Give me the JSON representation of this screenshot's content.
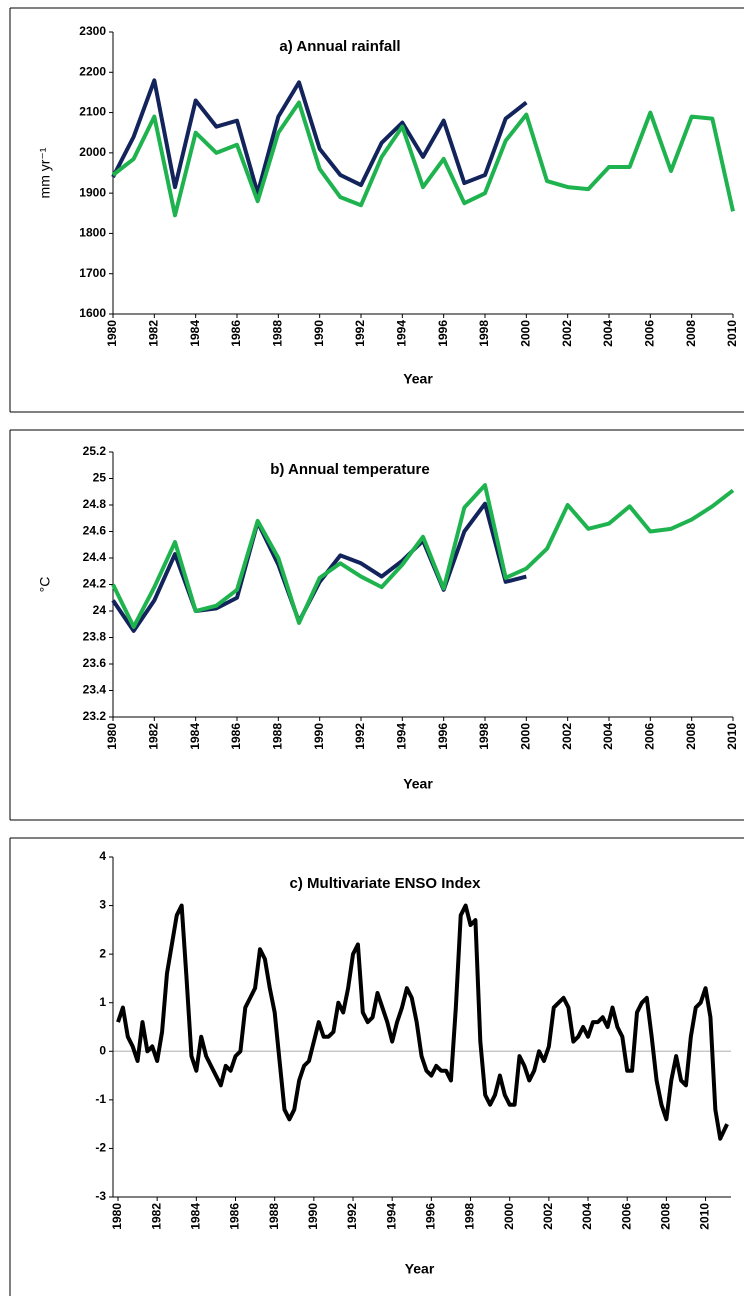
{
  "chart_data": [
    {
      "type": "line",
      "title": "a)  Annual rainfall",
      "xlabel": "Year",
      "ylabel": "mm yr⁻¹",
      "x": [
        1980,
        1981,
        1982,
        1983,
        1984,
        1985,
        1986,
        1987,
        1988,
        1989,
        1990,
        1991,
        1992,
        1993,
        1994,
        1995,
        1996,
        1997,
        1998,
        1999,
        2000,
        2001,
        2002,
        2003,
        2004,
        2005,
        2006,
        2007,
        2008,
        2009,
        2010
      ],
      "xlim": [
        1980,
        2010
      ],
      "xticks": [
        1980,
        1982,
        1984,
        1986,
        1988,
        1990,
        1992,
        1994,
        1996,
        1998,
        2000,
        2002,
        2004,
        2006,
        2008,
        2010
      ],
      "ylim": [
        1600,
        2300
      ],
      "yticks": [
        1600,
        1700,
        1800,
        1900,
        2000,
        2100,
        2200,
        2300
      ],
      "series": [
        {
          "color": "#13235b",
          "values": [
            1940,
            2040,
            2180,
            1915,
            2130,
            2065,
            2080,
            1900,
            2090,
            2175,
            2010,
            1945,
            1920,
            2025,
            2075,
            1990,
            2080,
            1925,
            1945,
            2085,
            2125,
            null,
            null,
            null,
            null,
            null,
            null,
            null,
            null,
            null,
            null
          ]
        },
        {
          "color": "#1fb34f",
          "values": [
            1945,
            1985,
            2090,
            1845,
            2050,
            2000,
            2020,
            1880,
            2050,
            2125,
            1960,
            1890,
            1870,
            1990,
            2065,
            1915,
            1985,
            1875,
            1900,
            2030,
            2095,
            1930,
            1915,
            1910,
            1965,
            1965,
            2100,
            1955,
            2090,
            2085,
            1855
          ]
        }
      ]
    },
    {
      "type": "line",
      "title": "b)  Annual  temperature",
      "xlabel": "Year",
      "ylabel": "°C",
      "x": [
        1980,
        1981,
        1982,
        1983,
        1984,
        1985,
        1986,
        1987,
        1988,
        1989,
        1990,
        1991,
        1992,
        1993,
        1994,
        1995,
        1996,
        1997,
        1998,
        1999,
        2000,
        2001,
        2002,
        2003,
        2004,
        2005,
        2006,
        2007,
        2008,
        2009,
        2010
      ],
      "xlim": [
        1980,
        2010
      ],
      "xticks": [
        1980,
        1982,
        1984,
        1986,
        1988,
        1990,
        1992,
        1994,
        1996,
        1998,
        2000,
        2002,
        2004,
        2006,
        2008,
        2010
      ],
      "ylim": [
        23.2,
        25.2
      ],
      "yticks": [
        23.2,
        23.4,
        23.6,
        23.8,
        24,
        24.2,
        24.4,
        24.6,
        24.8,
        25,
        25.2
      ],
      "series": [
        {
          "color": "#13235b",
          "values": [
            24.08,
            23.85,
            24.08,
            24.43,
            24.0,
            24.02,
            24.1,
            24.67,
            24.35,
            23.92,
            24.22,
            24.42,
            24.36,
            24.26,
            24.38,
            24.53,
            24.16,
            24.6,
            24.81,
            24.22,
            24.26,
            null,
            null,
            null,
            null,
            null,
            null,
            null,
            null,
            null,
            null
          ]
        },
        {
          "color": "#1fb34f",
          "values": [
            24.2,
            23.88,
            24.18,
            24.52,
            24.0,
            24.04,
            24.16,
            24.68,
            24.4,
            23.91,
            24.25,
            24.36,
            24.26,
            24.18,
            24.35,
            24.56,
            24.17,
            24.78,
            24.95,
            24.25,
            24.32,
            24.47,
            24.8,
            24.62,
            24.66,
            24.79,
            24.6,
            24.62,
            24.69,
            24.79,
            24.91
          ]
        }
      ]
    },
    {
      "type": "line",
      "title": "c) Multivariate ENSO Index",
      "xlabel": "Year",
      "zero_line": true,
      "x": [
        1980,
        1980.25,
        1980.5,
        1980.75,
        1981,
        1981.25,
        1981.5,
        1981.75,
        1982,
        1982.25,
        1982.5,
        1982.75,
        1983,
        1983.25,
        1983.5,
        1983.75,
        1984,
        1984.25,
        1984.5,
        1984.75,
        1985,
        1985.25,
        1985.5,
        1985.75,
        1986,
        1986.25,
        1986.5,
        1986.75,
        1987,
        1987.25,
        1987.5,
        1987.75,
        1988,
        1988.25,
        1988.5,
        1988.75,
        1989,
        1989.25,
        1989.5,
        1989.75,
        1990,
        1990.25,
        1990.5,
        1990.75,
        1991,
        1991.25,
        1991.5,
        1991.75,
        1992,
        1992.25,
        1992.5,
        1992.75,
        1993,
        1993.25,
        1993.5,
        1993.75,
        1994,
        1994.25,
        1994.5,
        1994.75,
        1995,
        1995.25,
        1995.5,
        1995.75,
        1996,
        1996.25,
        1996.5,
        1996.75,
        1997,
        1997.25,
        1997.5,
        1997.75,
        1998,
        1998.25,
        1998.5,
        1998.75,
        1999,
        1999.25,
        1999.5,
        1999.75,
        2000,
        2000.25,
        2000.5,
        2000.75,
        2001,
        2001.25,
        2001.5,
        2001.75,
        2002,
        2002.25,
        2002.5,
        2002.75,
        2003,
        2003.25,
        2003.5,
        2003.75,
        2004,
        2004.25,
        2004.5,
        2004.75,
        2005,
        2005.25,
        2005.5,
        2005.75,
        2006,
        2006.25,
        2006.5,
        2006.75,
        2007,
        2007.25,
        2007.5,
        2007.75,
        2008,
        2008.25,
        2008.5,
        2008.75,
        2009,
        2009.25,
        2009.5,
        2009.75,
        2010,
        2010.25,
        2010.5,
        2010.75,
        2011.1
      ],
      "xlim": [
        1980,
        2011.3
      ],
      "xticks": [
        1980,
        1982,
        1984,
        1986,
        1988,
        1990,
        1992,
        1994,
        1996,
        1998,
        2000,
        2002,
        2004,
        2006,
        2008,
        2010
      ],
      "ylim": [
        -3,
        4
      ],
      "yticks": [
        -3,
        -2,
        -1,
        0,
        1,
        2,
        3,
        4
      ],
      "series": [
        {
          "color": "#000000",
          "values": [
            0.6,
            0.9,
            0.3,
            0.1,
            -0.2,
            0.6,
            0.0,
            0.1,
            -0.2,
            0.4,
            1.6,
            2.2,
            2.8,
            3.0,
            1.5,
            -0.1,
            -0.4,
            0.3,
            -0.1,
            -0.3,
            -0.5,
            -0.7,
            -0.3,
            -0.4,
            -0.1,
            0.0,
            0.9,
            1.1,
            1.3,
            2.1,
            1.9,
            1.3,
            0.8,
            -0.2,
            -1.2,
            -1.4,
            -1.2,
            -0.6,
            -0.3,
            -0.2,
            0.2,
            0.6,
            0.3,
            0.3,
            0.4,
            1.0,
            0.8,
            1.3,
            2.0,
            2.2,
            0.8,
            0.6,
            0.7,
            1.2,
            0.9,
            0.6,
            0.2,
            0.6,
            0.9,
            1.3,
            1.1,
            0.6,
            -0.1,
            -0.4,
            -0.5,
            -0.3,
            -0.4,
            -0.4,
            -0.6,
            0.9,
            2.8,
            3.0,
            2.6,
            2.7,
            0.2,
            -0.9,
            -1.1,
            -0.9,
            -0.5,
            -0.9,
            -1.1,
            -1.1,
            -0.1,
            -0.3,
            -0.6,
            -0.4,
            0.0,
            -0.2,
            0.1,
            0.9,
            1.0,
            1.1,
            0.9,
            0.2,
            0.3,
            0.5,
            0.3,
            0.6,
            0.6,
            0.7,
            0.5,
            0.9,
            0.5,
            0.3,
            -0.4,
            -0.4,
            0.8,
            1.0,
            1.1,
            0.3,
            -0.6,
            -1.1,
            -1.4,
            -0.6,
            -0.1,
            -0.6,
            -0.7,
            0.3,
            0.9,
            1.0,
            1.3,
            0.7,
            -1.2,
            -1.8,
            -1.5
          ]
        }
      ]
    }
  ]
}
